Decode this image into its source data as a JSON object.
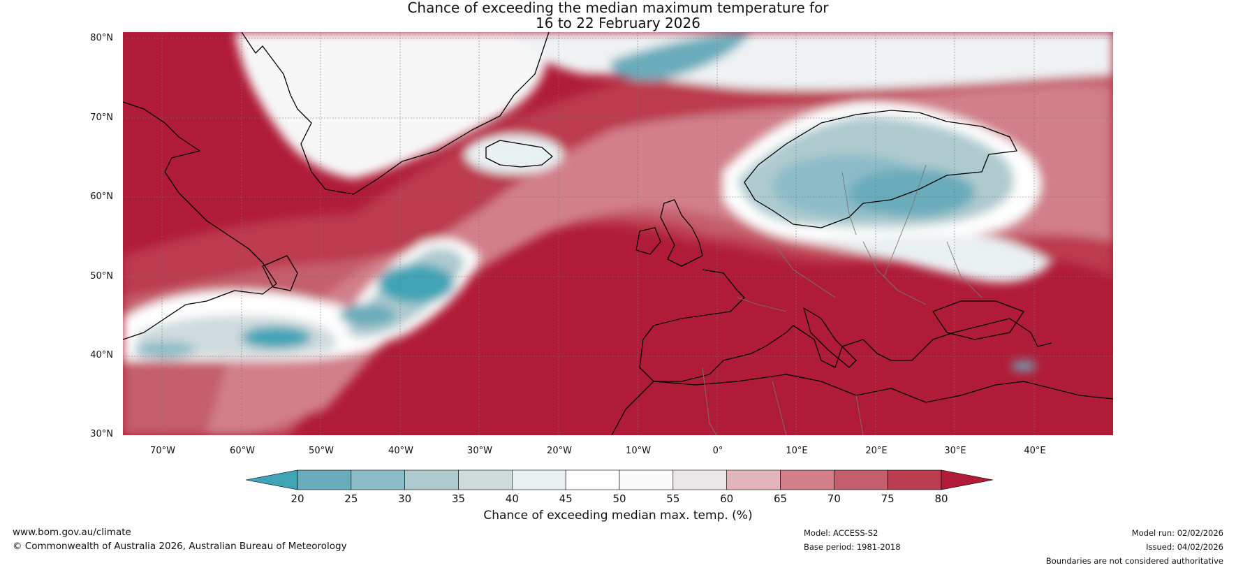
{
  "title": {
    "line1": "Chance of exceeding the median maximum temperature for",
    "line2": "16 to 22 February 2026"
  },
  "lat_labels": [
    "80°N",
    "70°N",
    "60°N",
    "50°N",
    "40°N",
    "30°N"
  ],
  "lon_labels": [
    "70°W",
    "60°W",
    "50°W",
    "40°W",
    "30°W",
    "20°W",
    "10°W",
    "0°",
    "10°E",
    "20°E",
    "30°E",
    "40°E"
  ],
  "map": {
    "extent": {
      "lon_min": -75,
      "lon_max": 50,
      "lat_min": 30,
      "lat_max": 81
    },
    "regions": [
      {
        "name": "Iceland",
        "chance": "40-45%"
      },
      {
        "name": "Scandinavia",
        "chance": "25-40%"
      },
      {
        "name": "Mid-Atlantic (45-52°N, 30-40°W)",
        "chance": "20-35%"
      },
      {
        "name": "Western Atlantic (38-43°N, 45-70°W)",
        "chance": "25-40%"
      },
      {
        "name": "Greenland interior",
        "chance": "45-55%"
      },
      {
        "name": "Mediterranean and North Africa",
        "chance": ">80%"
      },
      {
        "name": "Eastern Atlantic",
        "chance": ">80%"
      }
    ]
  },
  "colorbar": {
    "ticks": [
      "20",
      "25",
      "30",
      "35",
      "40",
      "45",
      "50",
      "55",
      "60",
      "65",
      "70",
      "75",
      "80"
    ],
    "colors": [
      "#3fa4b6",
      "#6aacbb",
      "#8cbcc7",
      "#aecacf",
      "#cfdadd",
      "#eaf1f3",
      "#ffffff",
      "#fbfbfb",
      "#ebe7e8",
      "#e1b5bb",
      "#d27f8a",
      "#c55e6c",
      "#bc3b4e",
      "#b01c38"
    ],
    "label": "Chance of exceeding median max. temp. (%)"
  },
  "footer": {
    "website": "www.bom.gov.au/climate",
    "copyright": "© Commonwealth of Australia 2026, Australian Bureau of Meteorology",
    "model": "Model: ACCESS-S2",
    "base_period": "Base period: 1981-2018",
    "model_run": "Model run: 02/02/2026",
    "issued": "Issued: 04/02/2026",
    "disclaimer": "Boundaries are not considered authoritative"
  }
}
